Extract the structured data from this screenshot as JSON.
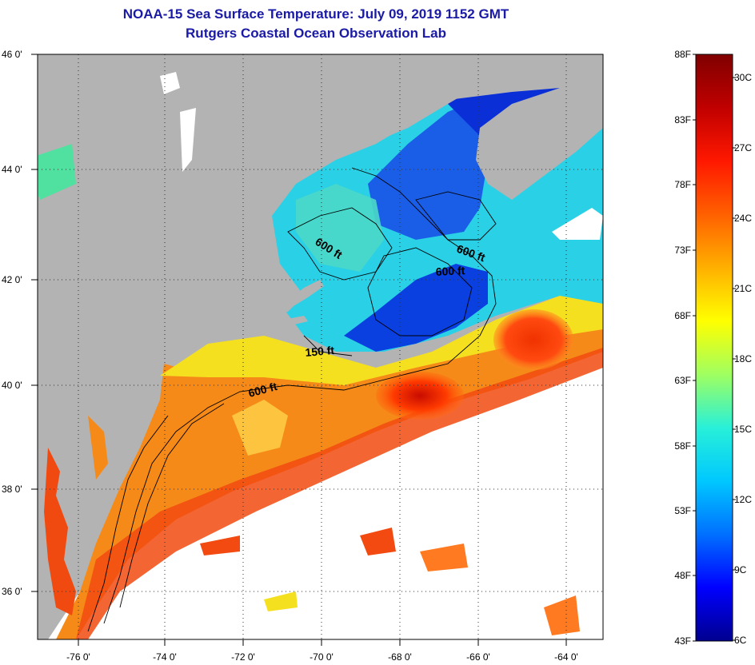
{
  "title": {
    "line1": "NOAA-15 Sea Surface Temperature:  July 09, 2019 1152 GMT",
    "line2": "Rutgers Coastal Ocean Observation Lab"
  },
  "map": {
    "lat_labels": [
      "46 0'",
      "44 0'",
      "42 0'",
      "40 0'",
      "38 0'",
      "36 0'"
    ],
    "lon_labels": [
      "-76 0'",
      "-74 0'",
      "-72 0'",
      "-70 0'",
      "-68 0'",
      "-66 0'",
      "-64 0'"
    ],
    "contour_labels": [
      "600 ft",
      "600 ft",
      "600 ft",
      "150 ft",
      "600 ft"
    ],
    "colors": {
      "land": "#b3b3b3",
      "cloud": "#ffffff",
      "cold": "#0a2fd6",
      "warm": "#f04a10"
    }
  },
  "colorbar": {
    "f_labels": [
      "88F",
      "83F",
      "78F",
      "73F",
      "68F",
      "63F",
      "58F",
      "53F",
      "48F",
      "43F"
    ],
    "c_labels": [
      "30C",
      "27C",
      "24C",
      "21C",
      "18C",
      "15C",
      "12C",
      "9C",
      "6C"
    ],
    "stops": [
      "#00008f",
      "#0000ff",
      "#0070ff",
      "#00c8ff",
      "#28f0d8",
      "#a0ff60",
      "#ffff00",
      "#ffb000",
      "#ff6000",
      "#ff1800",
      "#c00000",
      "#800000"
    ]
  }
}
